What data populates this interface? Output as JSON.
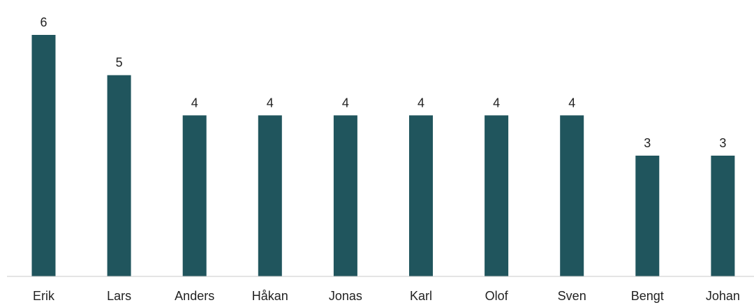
{
  "chart_data": {
    "type": "bar",
    "categories": [
      "Erik",
      "Lars",
      "Anders",
      "Håkan",
      "Jonas",
      "Karl",
      "Olof",
      "Sven",
      "Bengt",
      "Johan"
    ],
    "values": [
      6,
      5,
      4,
      4,
      4,
      4,
      4,
      4,
      3,
      3
    ],
    "title": "",
    "xlabel": "",
    "ylabel": "",
    "ylim": [
      0,
      6
    ],
    "data_labels": true,
    "grid": false,
    "legend": "none",
    "colors": {
      "bar": "#20555D",
      "axis": "#C8C8C8",
      "text": "#222222"
    }
  }
}
